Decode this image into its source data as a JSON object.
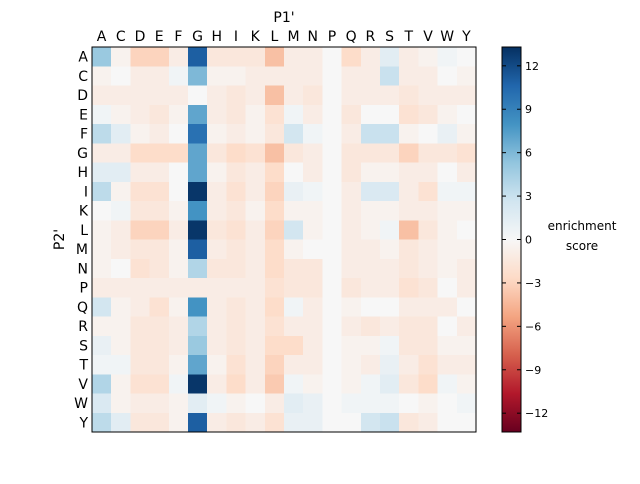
{
  "chart_data": {
    "type": "heatmap",
    "xlabel": "P1'",
    "ylabel": "P2'",
    "x_categories": [
      "A",
      "C",
      "D",
      "E",
      "F",
      "G",
      "H",
      "I",
      "K",
      "L",
      "M",
      "N",
      "P",
      "Q",
      "R",
      "S",
      "T",
      "V",
      "W",
      "Y"
    ],
    "y_categories": [
      "A",
      "C",
      "D",
      "E",
      "F",
      "G",
      "H",
      "I",
      "K",
      "L",
      "M",
      "N",
      "P",
      "Q",
      "R",
      "S",
      "T",
      "V",
      "W",
      "Y"
    ],
    "colorbar": {
      "label_line1": "enrichment",
      "label_line2": "score",
      "range": [
        -13.3,
        13.3
      ],
      "ticks": [
        12,
        9,
        6,
        3,
        0,
        -3,
        -6,
        -9,
        -12
      ],
      "tick_labels": [
        "12",
        "9",
        "6",
        "3",
        "0",
        "−3",
        "−6",
        "−9",
        "−12"
      ],
      "colormap": "RdBu_r",
      "colors": [
        "#67001f",
        "#b2182b",
        "#d6604d",
        "#f4a582",
        "#fddbc7",
        "#f7f7f7",
        "#d1e5f0",
        "#92c5de",
        "#4393c3",
        "#2166ac",
        "#053061"
      ]
    },
    "values": [
      [
        5,
        -0.5,
        -3,
        -3,
        -1,
        11,
        -1.5,
        -1.5,
        -1.5,
        -4,
        -1,
        -1,
        0,
        -2.5,
        -1,
        1.5,
        -1,
        -0.5,
        0.5,
        0
      ],
      [
        -0.5,
        0,
        -1,
        -1,
        0.5,
        6,
        -0.5,
        -0.5,
        -1,
        -1,
        -1,
        -1,
        0,
        -1,
        -1,
        3,
        -1,
        -1,
        0,
        -0.5
      ],
      [
        -1,
        -1,
        -1,
        -1,
        -1,
        0,
        -1,
        -1.5,
        -1,
        -4,
        -1,
        -1.5,
        0,
        -1,
        -1,
        -1,
        -1.5,
        -1,
        -1,
        -1
      ],
      [
        0.5,
        -0.5,
        -1,
        -1.5,
        -0.5,
        7,
        -1,
        -1.5,
        -0.5,
        -2,
        0.5,
        -1,
        0,
        -1.5,
        0,
        0,
        -2,
        -1.5,
        -0.5,
        0
      ],
      [
        3.5,
        1.5,
        -0.5,
        -1,
        0,
        10,
        -0.5,
        -1,
        -0.5,
        -1.5,
        2.5,
        0.5,
        0,
        -1,
        3,
        3,
        -0.5,
        0,
        1,
        -0.5
      ],
      [
        -1,
        -1,
        -2.5,
        -2.5,
        -2.5,
        7,
        -1.5,
        -2.5,
        -2,
        -4,
        -1.5,
        -1,
        0,
        -1.5,
        -1.5,
        -1.5,
        -3,
        -1.5,
        -1.5,
        -2
      ],
      [
        1.5,
        1.5,
        -1,
        -1,
        0,
        7,
        -0.5,
        -1.5,
        -1,
        -2.5,
        0,
        -1,
        0,
        -1.5,
        -0.5,
        -0.5,
        -1,
        -1,
        0,
        -1
      ],
      [
        3.5,
        -0.5,
        -2,
        -2,
        0,
        13,
        -1,
        -2,
        -1,
        -3,
        1,
        0.5,
        0,
        -1,
        2,
        2,
        -1,
        -2,
        0.5,
        0.5
      ],
      [
        0,
        0.5,
        -1.5,
        -1.5,
        -0.5,
        8,
        -1,
        -1.5,
        -0.5,
        -2.5,
        -0.5,
        -0.5,
        0,
        -1,
        -0.5,
        -0.5,
        -1,
        -1,
        -0.5,
        -0.5
      ],
      [
        -0.5,
        -1,
        -3,
        -3,
        -1,
        13,
        -1.5,
        -2,
        -1,
        -3,
        2.5,
        -0.5,
        0,
        -1,
        -0.5,
        0.5,
        -4,
        -1.5,
        -0.5,
        0
      ],
      [
        -0.5,
        -1,
        -1.5,
        -1.5,
        -0.5,
        11,
        -1,
        -1.5,
        -1,
        -2.5,
        -0.5,
        0,
        0,
        -1,
        -1,
        -0.5,
        -1.5,
        -1,
        -0.5,
        -0.5
      ],
      [
        -0.5,
        0,
        -2,
        -1.5,
        -0.5,
        4,
        -1.5,
        -1.5,
        -1,
        -2.5,
        -1.5,
        -1.5,
        0,
        -1,
        -1,
        -1,
        -1.5,
        -1,
        -0.5,
        -1
      ],
      [
        -1,
        -1,
        -1,
        -1,
        -1,
        -1,
        -1,
        -1,
        -1,
        -2,
        -1.5,
        -1.5,
        0,
        -1.5,
        -1,
        -1,
        -2,
        -1.5,
        0,
        -1
      ],
      [
        2.5,
        -0.5,
        -1,
        -2,
        -0.5,
        8,
        -1,
        -1.5,
        -1,
        -2.5,
        0.5,
        -1,
        0,
        -0.5,
        0,
        0,
        -1,
        -1,
        -1,
        0
      ],
      [
        -0.5,
        -0.5,
        -1.5,
        -1.5,
        -1,
        4,
        -1,
        -1.5,
        -1,
        -2,
        -1,
        -1,
        0,
        -1,
        -1.5,
        -1,
        -1.5,
        -1.5,
        0,
        -1
      ],
      [
        1,
        -0.5,
        -1.5,
        -1.5,
        -1,
        5,
        -1,
        -1.5,
        -1,
        -2.5,
        -2.5,
        -1,
        0,
        -0.5,
        -0.5,
        0.5,
        -1.5,
        -1.5,
        -0.5,
        -0.5
      ],
      [
        0.5,
        0.5,
        -1.5,
        -1.5,
        -0.5,
        7,
        -0.5,
        -2,
        -1,
        -3,
        -1,
        -1,
        0,
        -0.5,
        -1,
        1,
        -1,
        -2,
        -1,
        -1
      ],
      [
        4,
        -0.5,
        -2,
        -2,
        0.5,
        13,
        -1,
        -2.5,
        -1,
        -3.5,
        0.5,
        -0.5,
        0,
        -0.5,
        0.5,
        1.5,
        -1.5,
        -2.5,
        0.5,
        -0.5
      ],
      [
        2,
        -0.5,
        -1,
        -1,
        -0.5,
        1.5,
        0.5,
        -0.5,
        0,
        -1,
        1.5,
        1,
        0,
        0.5,
        0.5,
        0.5,
        0,
        -0.5,
        0,
        0.5
      ],
      [
        3.5,
        1.5,
        -1.5,
        -1.5,
        -0.5,
        11,
        -1,
        -1.5,
        -1,
        -2,
        1,
        1,
        0,
        0,
        2.5,
        3,
        -1.5,
        -1,
        0,
        0
      ]
    ]
  }
}
